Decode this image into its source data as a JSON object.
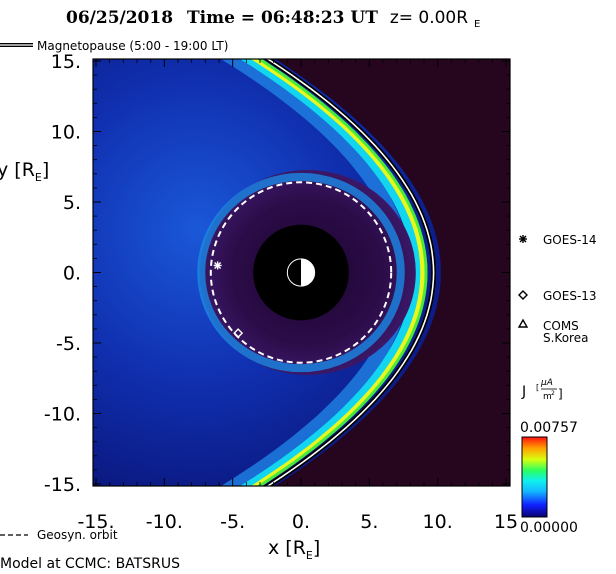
{
  "chart_data": {
    "type": "heatmap",
    "title": {
      "date": "06/25/2018",
      "time_label": "Time = 06:48:23 UT",
      "plane": "z= 0.00R",
      "plane_sub": "E"
    },
    "xlabel": {
      "main": "x [R",
      "sub": "E",
      "close": "]"
    },
    "ylabel": {
      "main": "y [R",
      "sub": "E",
      "close": "]"
    },
    "xlim": [
      -15,
      15
    ],
    "ylim": [
      -15,
      15
    ],
    "x_ticks": [
      "-15.",
      "-10.",
      "-5.",
      "0.",
      "5.",
      "10.",
      "15"
    ],
    "y_ticks": [
      "15.",
      "10.",
      "5.",
      "0.",
      "-5.",
      "-10.",
      "-15."
    ],
    "legend": {
      "magnetopause": "Magnetopause (5:00 - 19:00 LT)",
      "geosync": "Geosyn. orbit"
    },
    "magnetopause": {
      "standoff_x": 9.7,
      "flank_x_at_y15": -2.2
    },
    "geosync_orbit_radius": 6.6,
    "earth_shadow_radius": 3.5,
    "satellites": [
      {
        "name": "GOES-14",
        "marker": "asterisk",
        "x": -6.1,
        "y": 0.5
      },
      {
        "name": "GOES-13",
        "marker": "diamond",
        "x": -4.6,
        "y": -4.3
      },
      {
        "name": "COMS",
        "name2": "S.Korea",
        "marker": "triangle"
      }
    ],
    "colorbar": {
      "label": "J",
      "unit_num": "μA",
      "unit_den": "m",
      "unit_den_exp": "2",
      "max_label": "0.00757",
      "min_label": "0.00000",
      "min": 0.0,
      "max": 0.00757
    },
    "colors": {
      "background": "#0b1075",
      "inner": "#2a0a3a",
      "sheath_dark": "#14082e",
      "stripe_cyan": "#16d7ef",
      "stripe_yellow": "#e8f71f",
      "stripe_green": "#49e93c"
    }
  },
  "footer": {
    "model_credit": "Model at CCMC: BATSRUS"
  }
}
